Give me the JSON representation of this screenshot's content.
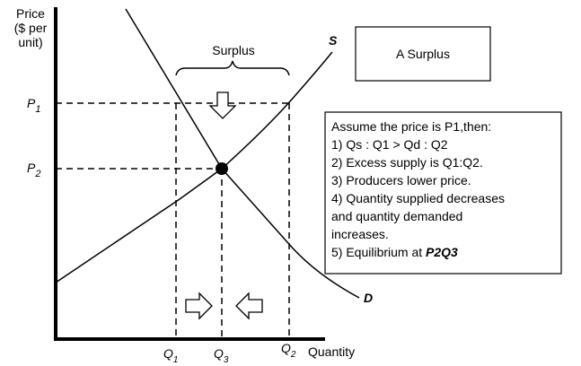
{
  "axis": {
    "y_label": [
      "Price",
      "($ per",
      "unit)"
    ],
    "x_label": "Quantity"
  },
  "curves": {
    "supply": "S",
    "demand": "D"
  },
  "title_box": "A Surplus",
  "brace_label": "Surplus",
  "price_labels": [
    {
      "base": "P",
      "sub": "1"
    },
    {
      "base": "P",
      "sub": "2"
    }
  ],
  "quantity_labels": [
    {
      "base": "Q",
      "sub": "1"
    },
    {
      "base": "Q",
      "sub": "3"
    },
    {
      "base": "Q",
      "sub": "2"
    }
  ],
  "explanation": {
    "lines": [
      "Assume the price is P1,then:",
      "1) Qs : Q1 > Qd : Q2",
      "2) Excess supply is Q1:Q2.",
      "3) Producers lower price.",
      "4) Quantity supplied decreases",
      "and quantity demanded",
      "increases."
    ],
    "last": {
      "text": "5) Equilibrium at ",
      "emphasis": "P2Q3"
    }
  }
}
